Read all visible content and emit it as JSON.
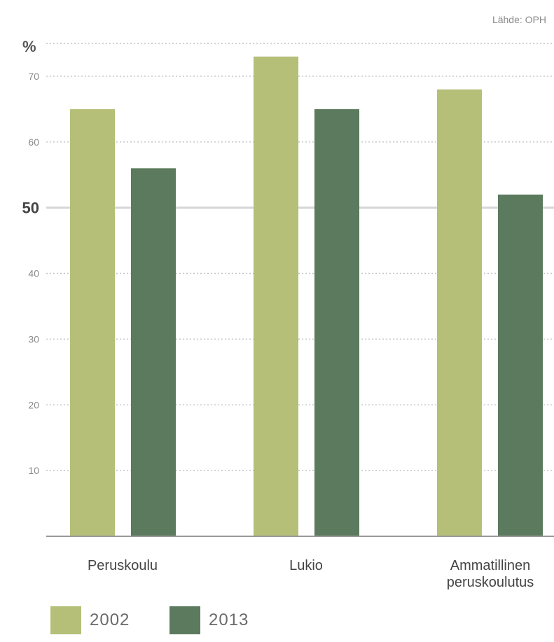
{
  "source": "Lähde: OPH",
  "chart_data": {
    "type": "bar",
    "ylabel": "%",
    "ylim": [
      0,
      75
    ],
    "yticks": [
      10,
      20,
      30,
      40,
      50,
      60,
      70
    ],
    "highlight_tick": 50,
    "categories": [
      "Peruskoulu",
      "Lukio",
      "Ammatillinen peruskoulutus"
    ],
    "series": [
      {
        "name": "2002",
        "color": "#b5bf78",
        "values": [
          65,
          73,
          68
        ]
      },
      {
        "name": "2013",
        "color": "#5b7a5e",
        "values": [
          56,
          65,
          52
        ]
      }
    ],
    "legend_position": "bottom-left",
    "grid": true
  }
}
